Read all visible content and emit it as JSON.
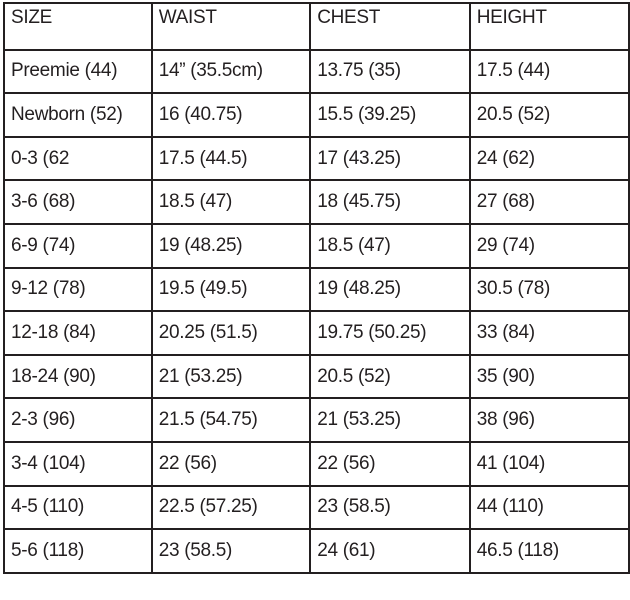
{
  "headers": [
    "SIZE",
    "WAIST",
    "CHEST",
    "HEIGHT"
  ],
  "rows": [
    [
      "Preemie (44)",
      "14” (35.5cm)",
      "13.75 (35)",
      "17.5 (44)"
    ],
    [
      "Newborn (52)",
      "16 (40.75)",
      "15.5 (39.25)",
      "20.5 (52)"
    ],
    [
      "0-3 (62",
      "17.5 (44.5)",
      "17 (43.25)",
      "24 (62)"
    ],
    [
      "3-6 (68)",
      "18.5 (47)",
      "18 (45.75)",
      "27 (68)"
    ],
    [
      "6-9 (74)",
      "19 (48.25)",
      "18.5 (47)",
      "29 (74)"
    ],
    [
      "9-12 (78)",
      "19.5 (49.5)",
      "19 (48.25)",
      "30.5 (78)"
    ],
    [
      "12-18 (84)",
      "20.25 (51.5)",
      "19.75 (50.25)",
      "33 (84)"
    ],
    [
      "18-24 (90)",
      "21 (53.25)",
      "20.5 (52)",
      "35 (90)"
    ],
    [
      "2-3 (96)",
      "21.5 (54.75)",
      "21 (53.25)",
      "38 (96)"
    ],
    [
      "3-4 (104)",
      "22 (56)",
      "22 (56)",
      "41 (104)"
    ],
    [
      "4-5 (110)",
      "22.5 (57.25)",
      "23 (58.5)",
      "44 (110)"
    ],
    [
      "5-6 (118)",
      "23 (58.5)",
      "24 (61)",
      "46.5 (118)"
    ]
  ]
}
